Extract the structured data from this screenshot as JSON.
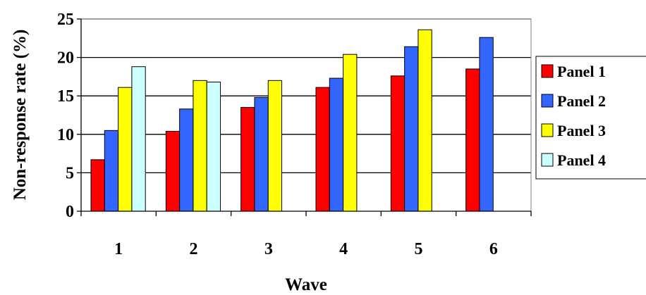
{
  "chart_data": {
    "type": "bar",
    "title": "",
    "xlabel": "Wave",
    "ylabel": "Non-response rate (%)",
    "categories": [
      "1",
      "2",
      "3",
      "4",
      "5",
      "6"
    ],
    "ylim": [
      0,
      25
    ],
    "yticks": [
      0,
      5,
      10,
      15,
      20,
      25
    ],
    "grid": true,
    "legend_position": "right",
    "series": [
      {
        "name": "Panel 1",
        "color": "#FF0000",
        "values": [
          6.7,
          10.4,
          13.5,
          16.1,
          17.6,
          18.5
        ]
      },
      {
        "name": "Panel 2",
        "color": "#3366FF",
        "values": [
          10.5,
          13.3,
          14.8,
          17.3,
          21.4,
          22.6
        ]
      },
      {
        "name": "Panel 3",
        "color": "#FFFF00",
        "values": [
          16.1,
          17.0,
          17.0,
          20.4,
          23.6,
          null
        ]
      },
      {
        "name": "Panel 4",
        "color": "#CCFFFF",
        "values": [
          18.8,
          16.8,
          null,
          null,
          null,
          null
        ]
      }
    ]
  }
}
